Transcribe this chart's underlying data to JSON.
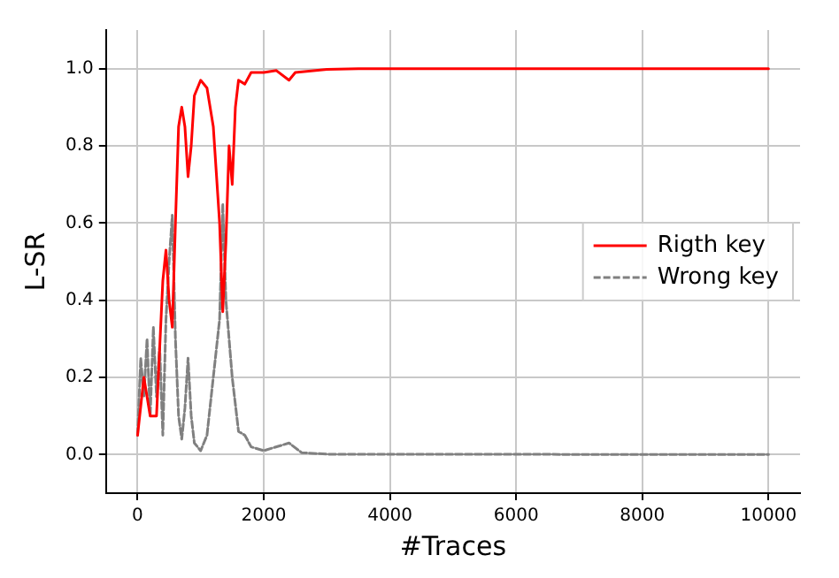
{
  "chart_data": {
    "type": "line",
    "xlabel": "#Traces",
    "ylabel": "L-SR",
    "xlim": [
      -500,
      10500
    ],
    "ylim": [
      -0.1,
      1.1
    ],
    "xticks": [
      0,
      2000,
      4000,
      6000,
      8000,
      10000
    ],
    "yticks": [
      {
        "value": 0,
        "label": "0.0"
      },
      {
        "value": 0.2,
        "label": "0.2"
      },
      {
        "value": 0.4,
        "label": "0.4"
      },
      {
        "value": 0.6,
        "label": "0.6"
      },
      {
        "value": 0.8,
        "label": "0.8"
      },
      {
        "value": 1,
        "label": "1.0"
      }
    ],
    "grid": true,
    "legend": "right",
    "marker": "none",
    "series": [
      {
        "name": "Rigth key",
        "color": "#ff0000",
        "line_style": "solid",
        "x": [
          0,
          100,
          200,
          300,
          400,
          450,
          500,
          550,
          600,
          650,
          700,
          750,
          800,
          850,
          900,
          1000,
          1100,
          1200,
          1300,
          1350,
          1400,
          1450,
          1500,
          1550,
          1600,
          1700,
          1800,
          2000,
          2200,
          2400,
          2500,
          3000,
          3500,
          10000
        ],
        "values": [
          0.05,
          0.2,
          0.1,
          0.1,
          0.45,
          0.53,
          0.4,
          0.33,
          0.6,
          0.85,
          0.9,
          0.85,
          0.72,
          0.8,
          0.93,
          0.97,
          0.95,
          0.85,
          0.6,
          0.37,
          0.55,
          0.8,
          0.7,
          0.9,
          0.97,
          0.96,
          0.99,
          0.99,
          0.995,
          0.97,
          0.99,
          0.998,
          1,
          1
        ]
      },
      {
        "name": "Wrong key",
        "color": "#808080",
        "line_style": "dashed",
        "x": [
          0,
          50,
          100,
          150,
          200,
          250,
          300,
          350,
          400,
          450,
          500,
          550,
          600,
          650,
          700,
          750,
          800,
          850,
          900,
          1000,
          1100,
          1200,
          1300,
          1350,
          1400,
          1450,
          1500,
          1600,
          1700,
          1800,
          2000,
          2400,
          2600,
          3000,
          10000
        ],
        "values": [
          0.05,
          0.25,
          0.15,
          0.3,
          0.1,
          0.33,
          0.15,
          0.28,
          0.05,
          0.35,
          0.5,
          0.62,
          0.3,
          0.1,
          0.04,
          0.12,
          0.25,
          0.1,
          0.03,
          0.01,
          0.05,
          0.2,
          0.35,
          0.65,
          0.4,
          0.3,
          0.2,
          0.06,
          0.05,
          0.02,
          0.01,
          0.03,
          0.005,
          0.001,
          0
        ]
      }
    ]
  }
}
